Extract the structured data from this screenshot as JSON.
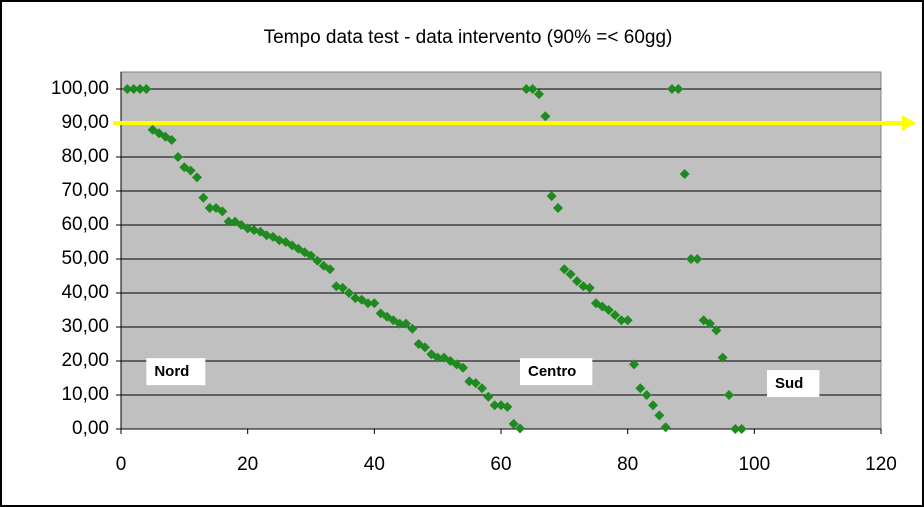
{
  "chart_data": {
    "type": "scatter",
    "title": "Tempo data test - data intervento (90% =< 60gg)",
    "series": [
      {
        "color": "#1f8a1f",
        "x": [
          1,
          2,
          3,
          4,
          5,
          6,
          7,
          8,
          9,
          10,
          11,
          12,
          13,
          14,
          15,
          16,
          17,
          18,
          19,
          20,
          21,
          22,
          23,
          24,
          25,
          26,
          27,
          28,
          29,
          30,
          31,
          32,
          33,
          34,
          35,
          36,
          37,
          38,
          39,
          40,
          41,
          42,
          43,
          44,
          45,
          46,
          47,
          48,
          49,
          50,
          51,
          52,
          53,
          54,
          55,
          56,
          57,
          58,
          59,
          60,
          61,
          62,
          63,
          64,
          65,
          66,
          67,
          68,
          69,
          70,
          71,
          72,
          73,
          74,
          75,
          76,
          77,
          78,
          79,
          80,
          81,
          82,
          83,
          84,
          85,
          86,
          87,
          88,
          89,
          90,
          91,
          92,
          93,
          94,
          95,
          96,
          97,
          98
        ],
        "values": [
          100,
          100,
          100,
          100,
          88,
          87,
          86,
          85,
          80,
          77,
          76,
          74,
          68,
          65,
          65,
          64,
          61,
          61,
          60,
          59,
          58.5,
          58,
          57,
          56.5,
          55.5,
          55,
          54,
          53,
          52,
          51,
          49.5,
          48,
          47,
          42,
          41.5,
          40,
          38.5,
          38,
          37,
          37,
          34,
          33,
          32,
          31,
          31,
          29.5,
          25,
          24,
          22,
          21,
          21,
          20,
          19,
          18,
          14,
          13.5,
          12,
          9.5,
          7,
          7,
          6.5,
          1.5,
          0.2,
          100,
          100,
          98.5,
          92,
          68.5,
          65,
          47,
          45.5,
          43.5,
          42,
          41.5,
          37,
          36,
          35,
          33.5,
          32,
          32,
          19,
          12,
          10,
          7,
          4,
          0.5,
          100,
          100,
          75,
          50,
          50,
          32,
          31,
          29,
          21,
          10,
          0,
          0
        ]
      }
    ],
    "xlim": [
      0,
      120
    ],
    "xticks": [
      0,
      20,
      40,
      60,
      80,
      100,
      120
    ],
    "ylim": [
      0,
      105
    ],
    "yticks": [
      {
        "value": 0,
        "label": "0,00"
      },
      {
        "value": 10,
        "label": "10,00"
      },
      {
        "value": 20,
        "label": "20,00"
      },
      {
        "value": 30,
        "label": "30,00"
      },
      {
        "value": 40,
        "label": "40,00"
      },
      {
        "value": 50,
        "label": "50,00"
      },
      {
        "value": 60,
        "label": "60,00"
      },
      {
        "value": 70,
        "label": "70,00"
      },
      {
        "value": 80,
        "label": "80,00"
      },
      {
        "value": 90,
        "label": "90,00"
      },
      {
        "value": 100,
        "label": "100,00"
      }
    ],
    "grid": true,
    "reference_line": {
      "value": 90,
      "color": "#ffff00"
    },
    "annotations": [
      {
        "text": "Nord",
        "x": 4,
        "y": 17
      },
      {
        "text": "Centro",
        "x": 63,
        "y": 17
      },
      {
        "text": "Sud",
        "x": 102,
        "y": 13.5
      }
    ]
  }
}
